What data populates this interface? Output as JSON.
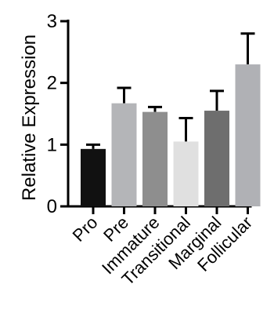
{
  "chart_data": {
    "type": "bar",
    "title": "",
    "xlabel": "",
    "ylabel": "Relative Expression",
    "ylim": [
      0,
      3
    ],
    "yticks": [
      0,
      1,
      2,
      3
    ],
    "grid": false,
    "categories": [
      "Pro",
      "Pre",
      "Immature",
      "Transitional",
      "Marginal",
      "Follicular"
    ],
    "values": [
      0.93,
      1.67,
      1.53,
      1.05,
      1.55,
      2.3
    ],
    "error": [
      0.07,
      0.25,
      0.08,
      0.38,
      0.32,
      0.5
    ],
    "colors": [
      "#111111",
      "#b4b5b8",
      "#8e8e8e",
      "#e0e0e0",
      "#6e6e6e",
      "#b0b1b5"
    ]
  }
}
